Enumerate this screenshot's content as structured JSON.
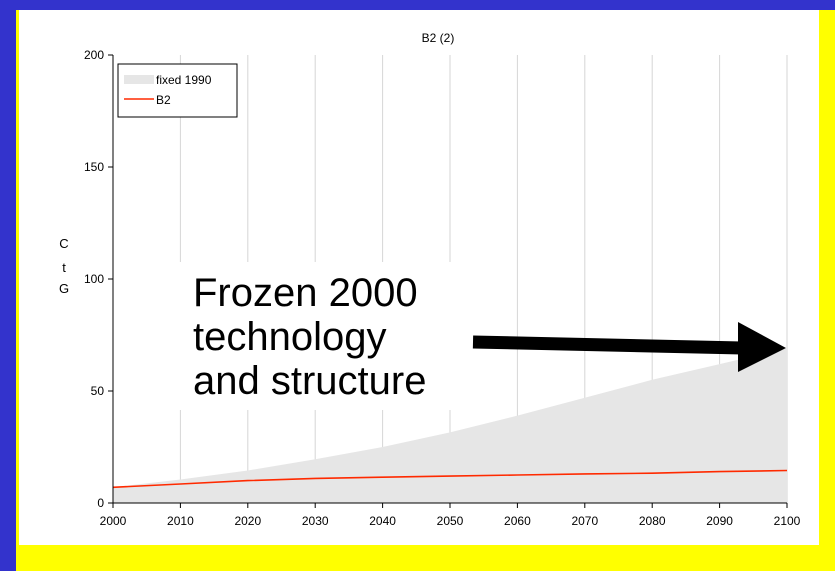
{
  "colors": {
    "background": "#3333cc",
    "frame": "#ffff00",
    "panel": "#ffffff",
    "area_fill": "#e6e6e6",
    "line": "#ff2a00",
    "arrow": "#000000"
  },
  "annotation": {
    "lines": [
      "Frozen 2000",
      "technology",
      "and structure"
    ]
  },
  "chart_data": {
    "type": "area",
    "title": "B2 (2)",
    "ylabel_chars": [
      "C",
      "t",
      "G"
    ],
    "xlim": [
      2000,
      2100
    ],
    "ylim": [
      0,
      200
    ],
    "x_ticks": [
      "2000",
      "2010",
      "2020",
      "2030",
      "2040",
      "2050",
      "2060",
      "2070",
      "2080",
      "2090",
      "2100"
    ],
    "y_ticks": [
      "0",
      "50",
      "100",
      "150",
      "200"
    ],
    "grid": "vertical",
    "legend_position": "top-left",
    "x": [
      2000,
      2010,
      2020,
      2030,
      2040,
      2050,
      2060,
      2070,
      2080,
      2090,
      2100
    ],
    "series": [
      {
        "name": "fixed 1990",
        "kind": "area",
        "values": [
          7,
          10.5,
          14.5,
          19.5,
          25,
          31.5,
          39,
          47,
          55,
          62,
          69
        ]
      },
      {
        "name": "B2",
        "kind": "line",
        "values": [
          7,
          8.5,
          10,
          11,
          11.5,
          12,
          12.5,
          13,
          13.3,
          14,
          14.5
        ]
      }
    ]
  }
}
